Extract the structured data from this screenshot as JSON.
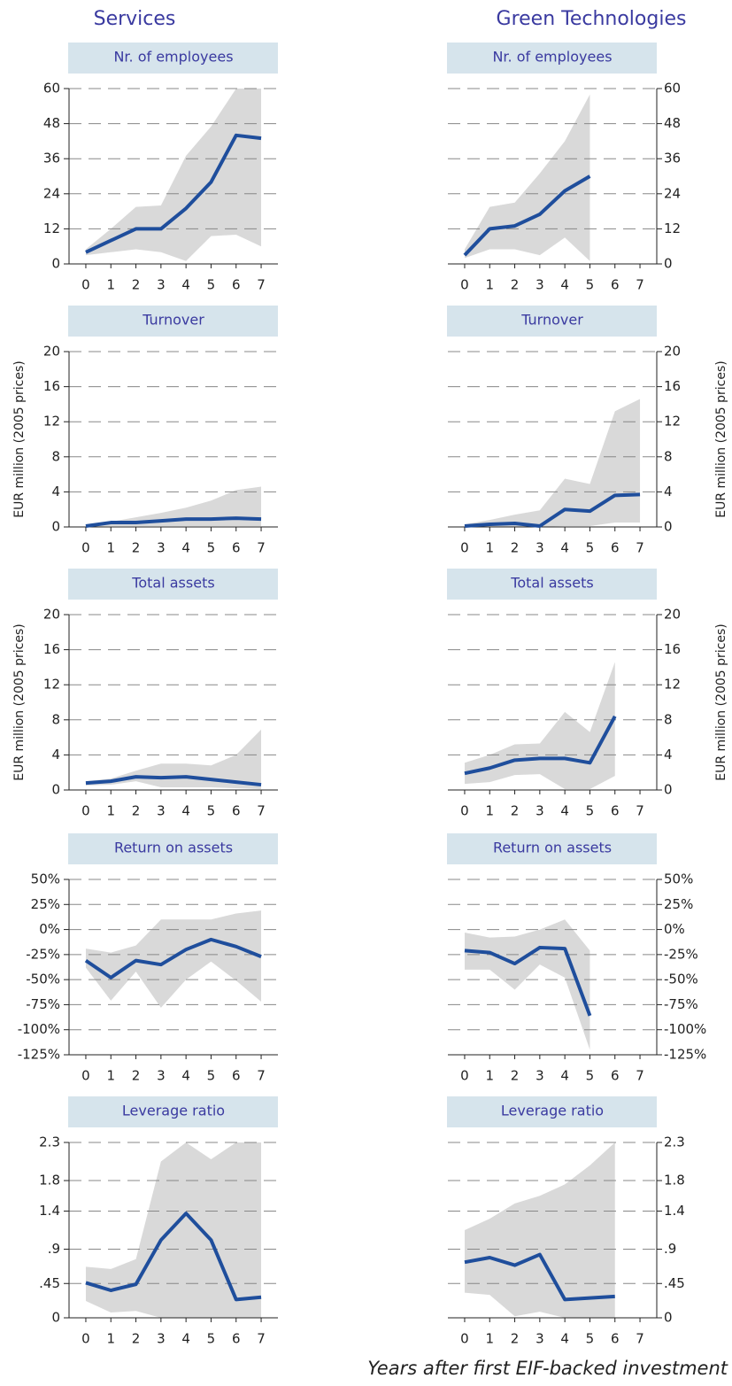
{
  "headers": [
    "Services",
    "Green Technologies"
  ],
  "x_label": "Years after first EIF-backed investment",
  "chart_data": [
    {
      "type": "line",
      "yaxis": "left",
      "title": "Nr. of employees",
      "color": "#1f4e9c",
      "band_color": "#d9d9d9",
      "grid": true,
      "x": [
        0,
        1,
        2,
        3,
        4,
        5,
        6,
        7
      ],
      "xticks": [
        0,
        1,
        2,
        3,
        4,
        5,
        6,
        7
      ],
      "xlim": [
        -0.67,
        7.67
      ],
      "ylim": [
        0,
        60
      ],
      "yticks": [
        0,
        12,
        24,
        36,
        48,
        60
      ],
      "values": [
        4,
        8,
        12,
        12,
        19,
        28,
        44,
        43
      ],
      "upper": [
        5,
        12,
        19.5,
        20,
        37,
        47,
        60,
        60
      ],
      "lower": [
        3,
        4,
        5,
        4,
        1,
        9.5,
        10,
        6
      ]
    },
    {
      "type": "line",
      "yaxis": "left",
      "title": "Turnover",
      "ylabel": "EUR million (2005 prices)",
      "color": "#1f4e9c",
      "band_color": "#d9d9d9",
      "grid": true,
      "x": [
        0,
        1,
        2,
        3,
        4,
        5,
        6,
        7
      ],
      "xticks": [
        0,
        1,
        2,
        3,
        4,
        5,
        6,
        7
      ],
      "xlim": [
        -0.67,
        7.67
      ],
      "ylim": [
        0,
        20
      ],
      "yticks": [
        0,
        4,
        8,
        12,
        16,
        20
      ],
      "values": [
        0.1,
        0.5,
        0.5,
        0.7,
        0.9,
        0.9,
        1.0,
        0.9
      ],
      "upper": [
        0.3,
        0.6,
        1.1,
        1.6,
        2.2,
        3.0,
        4.2,
        4.6
      ],
      "lower": [
        0,
        0.1,
        0.1,
        0.1,
        0.1,
        0.1,
        0.1,
        0.1
      ]
    },
    {
      "type": "line",
      "yaxis": "left",
      "title": "Total assets",
      "ylabel": "EUR million (2005 prices)",
      "color": "#1f4e9c",
      "band_color": "#d9d9d9",
      "grid": true,
      "x": [
        0,
        1,
        2,
        3,
        4,
        5,
        6,
        7
      ],
      "xticks": [
        0,
        1,
        2,
        3,
        4,
        5,
        6,
        7
      ],
      "xlim": [
        -0.67,
        7.67
      ],
      "ylim": [
        0,
        20
      ],
      "yticks": [
        0,
        4,
        8,
        12,
        16,
        20
      ],
      "values": [
        0.8,
        1.0,
        1.5,
        1.4,
        1.5,
        1.2,
        0.9,
        0.6
      ],
      "upper": [
        1.0,
        1.3,
        2.2,
        3.0,
        3.0,
        2.8,
        4.0,
        6.9
      ],
      "lower": [
        0.5,
        0.6,
        1.0,
        0.3,
        0.3,
        0.3,
        0.2,
        0.1
      ]
    },
    {
      "type": "line",
      "yaxis": "left",
      "title": "Return on assets",
      "color": "#1f4e9c",
      "band_color": "#d9d9d9",
      "grid": true,
      "x": [
        0,
        1,
        2,
        3,
        4,
        5,
        6,
        7
      ],
      "xticks": [
        0,
        1,
        2,
        3,
        4,
        5,
        6,
        7
      ],
      "xlim": [
        -0.67,
        7.67
      ],
      "ylim": [
        -125,
        50
      ],
      "yticks": [
        {
          "value": -125,
          "label": "-125%"
        },
        {
          "value": -100,
          "label": "-100%"
        },
        {
          "value": -75,
          "label": "-75%"
        },
        {
          "value": -50,
          "label": "-50%"
        },
        {
          "value": -25,
          "label": "-25%"
        },
        {
          "value": 0,
          "label": "0%"
        },
        {
          "value": 25,
          "label": "25%"
        },
        {
          "value": 50,
          "label": "50%"
        }
      ],
      "values": [
        -31,
        -48,
        -31,
        -35,
        -20,
        -10,
        -17,
        -27
      ],
      "upper": [
        -19,
        -23,
        -16,
        10,
        10,
        10,
        16,
        19
      ],
      "lower": [
        -38,
        -71,
        -42,
        -78,
        -50,
        -32,
        -51,
        -72
      ]
    },
    {
      "type": "line",
      "yaxis": "left",
      "title": "Leverage ratio",
      "color": "#1f4e9c",
      "band_color": "#d9d9d9",
      "grid": true,
      "x": [
        0,
        1,
        2,
        3,
        4,
        5,
        6,
        7
      ],
      "xticks": [
        0,
        1,
        2,
        3,
        4,
        5,
        6,
        7
      ],
      "xlim": [
        -0.67,
        7.67
      ],
      "ylim": [
        0,
        2.3
      ],
      "yticks": [
        0,
        {
          "value": 0.45,
          "label": ".45"
        },
        {
          "value": 0.9,
          "label": ".9"
        },
        1.4,
        1.8,
        2.3
      ],
      "values": [
        0.46,
        0.36,
        0.44,
        1.02,
        1.37,
        1.02,
        0.24,
        0.27
      ],
      "upper": [
        0.67,
        0.64,
        0.77,
        2.05,
        2.3,
        2.08,
        2.3,
        2.3
      ],
      "lower": [
        0.22,
        0.07,
        0.09,
        0,
        0,
        0,
        0,
        0
      ]
    },
    {
      "type": "line",
      "yaxis": "right",
      "title": "Nr. of employees",
      "color": "#1f4e9c",
      "band_color": "#d9d9d9",
      "grid": true,
      "x": [
        0,
        1,
        2,
        3,
        4,
        5,
        6,
        7
      ],
      "xticks": [
        0,
        1,
        2,
        3,
        4,
        5,
        6,
        7
      ],
      "xlim": [
        -0.67,
        7.67
      ],
      "ylim": [
        0,
        60
      ],
      "yticks": [
        0,
        12,
        24,
        36,
        48,
        60
      ],
      "values": [
        3,
        12,
        13,
        17,
        25,
        30,
        null,
        null
      ],
      "upper": [
        5,
        19.5,
        21,
        31,
        42,
        58,
        null,
        null
      ],
      "lower": [
        2,
        5,
        5,
        3,
        9,
        1,
        null,
        null
      ]
    },
    {
      "type": "line",
      "yaxis": "right",
      "title": "Turnover",
      "ylabel": "EUR million (2005 prices)",
      "color": "#1f4e9c",
      "band_color": "#d9d9d9",
      "grid": true,
      "x": [
        0,
        1,
        2,
        3,
        4,
        5,
        6,
        7
      ],
      "xticks": [
        0,
        1,
        2,
        3,
        4,
        5,
        6,
        7
      ],
      "xlim": [
        -0.67,
        7.67
      ],
      "ylim": [
        0,
        20
      ],
      "yticks": [
        0,
        4,
        8,
        12,
        16,
        20
      ],
      "values": [
        0.1,
        0.3,
        0.4,
        0.1,
        2.0,
        1.8,
        3.6,
        3.7
      ],
      "upper": [
        0.3,
        0.8,
        1.4,
        1.9,
        5.5,
        4.9,
        13.2,
        14.6
      ],
      "lower": [
        0,
        0,
        0,
        0,
        0.1,
        0.1,
        0.5,
        0.5
      ]
    },
    {
      "type": "line",
      "yaxis": "right",
      "title": "Total assets",
      "ylabel": "EUR million (2005 prices)",
      "color": "#1f4e9c",
      "band_color": "#d9d9d9",
      "grid": true,
      "x": [
        0,
        1,
        2,
        3,
        4,
        5,
        6,
        7
      ],
      "xticks": [
        0,
        1,
        2,
        3,
        4,
        5,
        6,
        7
      ],
      "xlim": [
        -0.67,
        7.67
      ],
      "ylim": [
        0,
        20
      ],
      "yticks": [
        0,
        4,
        8,
        12,
        16,
        20
      ],
      "values": [
        1.9,
        2.5,
        3.4,
        3.6,
        3.6,
        3.1,
        8.4,
        null
      ],
      "upper": [
        3.1,
        4.0,
        5.2,
        5.3,
        8.9,
        6.6,
        14.6,
        null
      ],
      "lower": [
        0.7,
        0.9,
        1.7,
        1.8,
        0.1,
        0.1,
        1.6,
        null
      ]
    },
    {
      "type": "line",
      "yaxis": "right",
      "title": "Return on assets",
      "color": "#1f4e9c",
      "band_color": "#d9d9d9",
      "grid": true,
      "x": [
        0,
        1,
        2,
        3,
        4,
        5,
        6,
        7
      ],
      "xticks": [
        0,
        1,
        2,
        3,
        4,
        5,
        6,
        7
      ],
      "xlim": [
        -0.67,
        7.67
      ],
      "ylim": [
        -125,
        50
      ],
      "yticks": [
        {
          "value": -125,
          "label": "-125%"
        },
        {
          "value": -100,
          "label": "-100%"
        },
        {
          "value": -75,
          "label": "-75%"
        },
        {
          "value": -50,
          "label": "-50%"
        },
        {
          "value": -25,
          "label": "-25%"
        },
        {
          "value": 0,
          "label": "0%"
        },
        {
          "value": 25,
          "label": "25%"
        },
        {
          "value": 50,
          "label": "50%"
        }
      ],
      "values": [
        -21,
        -23,
        -34,
        -18,
        -19,
        -86,
        null,
        null
      ],
      "upper": [
        -3,
        -8,
        -7,
        0,
        10,
        -21,
        null,
        null
      ],
      "lower": [
        -40,
        -40,
        -60,
        -35,
        -48,
        -120,
        null,
        null
      ]
    },
    {
      "type": "line",
      "yaxis": "right",
      "title": "Leverage ratio",
      "color": "#1f4e9c",
      "band_color": "#d9d9d9",
      "grid": true,
      "x": [
        0,
        1,
        2,
        3,
        4,
        5,
        6,
        7
      ],
      "xticks": [
        0,
        1,
        2,
        3,
        4,
        5,
        6,
        7
      ],
      "xlim": [
        -0.67,
        7.67
      ],
      "ylim": [
        0,
        2.3
      ],
      "yticks": [
        0,
        {
          "value": 0.45,
          "label": ".45"
        },
        {
          "value": 0.9,
          "label": ".9"
        },
        1.4,
        1.8,
        2.3
      ],
      "values": [
        0.73,
        0.79,
        0.69,
        0.83,
        0.24,
        0.26,
        0.28,
        null
      ],
      "upper": [
        1.15,
        1.3,
        1.5,
        1.6,
        1.75,
        2.0,
        2.3,
        null
      ],
      "lower": [
        0.33,
        0.3,
        0.02,
        0.08,
        0,
        0,
        0,
        null
      ]
    }
  ]
}
